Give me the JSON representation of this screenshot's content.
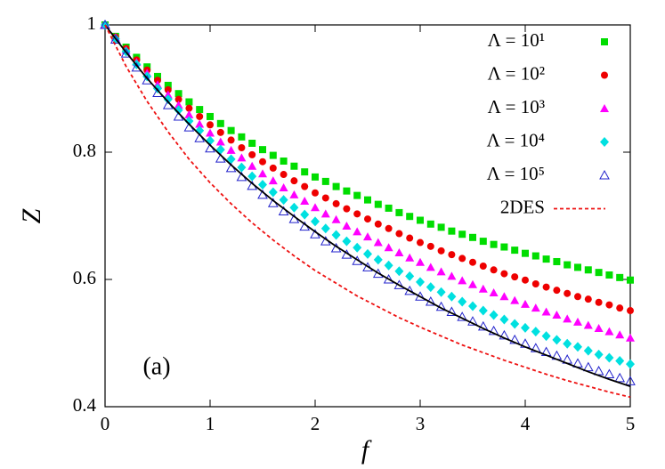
{
  "chart_data": {
    "type": "scatter",
    "xlabel": "f",
    "ylabel": "Z",
    "annotation": "(a)",
    "xlim": [
      0,
      5
    ],
    "ylim": [
      0.4,
      1
    ],
    "xticks": [
      0,
      1,
      2,
      3,
      4,
      5
    ],
    "yticks": [
      0.4,
      0.6,
      0.8,
      1
    ],
    "legend": "top-right",
    "series": [
      {
        "name": "Λ = 10¹",
        "color": "#00dd00",
        "marker": "square",
        "x": [
          0,
          0.1,
          0.2,
          0.3,
          0.4,
          0.5,
          0.6,
          0.7,
          0.8,
          0.9,
          1,
          1.1,
          1.2,
          1.3,
          1.4,
          1.5,
          1.6,
          1.7,
          1.8,
          1.9,
          2,
          2.1,
          2.2,
          2.3,
          2.4,
          2.5,
          2.6,
          2.7,
          2.8,
          2.9,
          3,
          3.1,
          3.2,
          3.3,
          3.4,
          3.5,
          3.6,
          3.7,
          3.8,
          3.9,
          4,
          4.1,
          4.2,
          4.3,
          4.4,
          4.5,
          4.6,
          4.7,
          4.8,
          4.9,
          5
        ],
        "values": [
          1,
          0.982,
          0.965,
          0.949,
          0.934,
          0.919,
          0.905,
          0.892,
          0.879,
          0.867,
          0.856,
          0.845,
          0.834,
          0.824,
          0.814,
          0.804,
          0.795,
          0.786,
          0.778,
          0.769,
          0.761,
          0.754,
          0.746,
          0.739,
          0.732,
          0.725,
          0.718,
          0.712,
          0.705,
          0.699,
          0.693,
          0.687,
          0.682,
          0.676,
          0.671,
          0.666,
          0.66,
          0.655,
          0.651,
          0.646,
          0.641,
          0.637,
          0.632,
          0.628,
          0.623,
          0.619,
          0.615,
          0.611,
          0.607,
          0.603,
          0.599
        ]
      },
      {
        "name": "Λ = 10²",
        "color": "#ee0000",
        "marker": "circle",
        "x": [
          0,
          0.1,
          0.2,
          0.3,
          0.4,
          0.5,
          0.6,
          0.7,
          0.8,
          0.9,
          1,
          1.1,
          1.2,
          1.3,
          1.4,
          1.5,
          1.6,
          1.7,
          1.8,
          1.9,
          2,
          2.1,
          2.2,
          2.3,
          2.4,
          2.5,
          2.6,
          2.7,
          2.8,
          2.9,
          3,
          3.1,
          3.2,
          3.3,
          3.4,
          3.5,
          3.6,
          3.7,
          3.8,
          3.9,
          4,
          4.1,
          4.2,
          4.3,
          4.4,
          4.5,
          4.6,
          4.7,
          4.8,
          4.9,
          5
        ],
        "values": [
          1,
          0.981,
          0.963,
          0.945,
          0.929,
          0.913,
          0.898,
          0.883,
          0.869,
          0.856,
          0.843,
          0.831,
          0.819,
          0.807,
          0.796,
          0.785,
          0.775,
          0.765,
          0.755,
          0.746,
          0.736,
          0.728,
          0.719,
          0.711,
          0.703,
          0.695,
          0.687,
          0.68,
          0.672,
          0.665,
          0.658,
          0.652,
          0.645,
          0.639,
          0.633,
          0.627,
          0.621,
          0.615,
          0.609,
          0.604,
          0.599,
          0.593,
          0.588,
          0.583,
          0.578,
          0.573,
          0.569,
          0.564,
          0.56,
          0.555,
          0.551
        ]
      },
      {
        "name": "Λ = 10³",
        "color": "#ff00ff",
        "marker": "triangle",
        "x": [
          0,
          0.1,
          0.2,
          0.3,
          0.4,
          0.5,
          0.6,
          0.7,
          0.8,
          0.9,
          1,
          1.1,
          1.2,
          1.3,
          1.4,
          1.5,
          1.6,
          1.7,
          1.8,
          1.9,
          2,
          2.1,
          2.2,
          2.3,
          2.4,
          2.5,
          2.6,
          2.7,
          2.8,
          2.9,
          3,
          3.1,
          3.2,
          3.3,
          3.4,
          3.5,
          3.6,
          3.7,
          3.8,
          3.9,
          4,
          4.1,
          4.2,
          4.3,
          4.4,
          4.5,
          4.6,
          4.7,
          4.8,
          4.9,
          5
        ],
        "values": [
          1,
          0.98,
          0.96,
          0.941,
          0.924,
          0.906,
          0.89,
          0.874,
          0.859,
          0.844,
          0.83,
          0.816,
          0.803,
          0.791,
          0.778,
          0.766,
          0.755,
          0.744,
          0.733,
          0.723,
          0.713,
          0.703,
          0.694,
          0.684,
          0.675,
          0.667,
          0.658,
          0.65,
          0.642,
          0.634,
          0.627,
          0.619,
          0.612,
          0.605,
          0.598,
          0.592,
          0.585,
          0.579,
          0.573,
          0.567,
          0.561,
          0.555,
          0.549,
          0.544,
          0.538,
          0.533,
          0.528,
          0.523,
          0.518,
          0.513,
          0.508
        ]
      },
      {
        "name": "Λ = 10⁴",
        "color": "#00e0e0",
        "marker": "diamond",
        "x": [
          0,
          0.1,
          0.2,
          0.3,
          0.4,
          0.5,
          0.6,
          0.7,
          0.8,
          0.9,
          1,
          1.1,
          1.2,
          1.3,
          1.4,
          1.5,
          1.6,
          1.7,
          1.8,
          1.9,
          2,
          2.1,
          2.2,
          2.3,
          2.4,
          2.5,
          2.6,
          2.7,
          2.8,
          2.9,
          3,
          3.1,
          3.2,
          3.3,
          3.4,
          3.5,
          3.6,
          3.7,
          3.8,
          3.9,
          4,
          4.1,
          4.2,
          4.3,
          4.4,
          4.5,
          4.6,
          4.7,
          4.8,
          4.9,
          5
        ],
        "values": [
          1,
          0.978,
          0.958,
          0.938,
          0.919,
          0.9,
          0.883,
          0.866,
          0.849,
          0.834,
          0.818,
          0.804,
          0.789,
          0.776,
          0.762,
          0.749,
          0.737,
          0.725,
          0.713,
          0.702,
          0.691,
          0.68,
          0.67,
          0.66,
          0.65,
          0.64,
          0.631,
          0.622,
          0.613,
          0.605,
          0.596,
          0.588,
          0.58,
          0.573,
          0.565,
          0.558,
          0.551,
          0.544,
          0.537,
          0.53,
          0.524,
          0.518,
          0.511,
          0.505,
          0.499,
          0.494,
          0.488,
          0.482,
          0.477,
          0.472,
          0.467
        ]
      },
      {
        "name": "Λ = 10⁵",
        "color": "#2222cc",
        "marker": "open-triangle",
        "x": [
          0,
          0.1,
          0.2,
          0.3,
          0.4,
          0.5,
          0.6,
          0.7,
          0.8,
          0.9,
          1,
          1.1,
          1.2,
          1.3,
          1.4,
          1.5,
          1.6,
          1.7,
          1.8,
          1.9,
          2,
          2.1,
          2.2,
          2.3,
          2.4,
          2.5,
          2.6,
          2.7,
          2.8,
          2.9,
          3,
          3.1,
          3.2,
          3.3,
          3.4,
          3.5,
          3.6,
          3.7,
          3.8,
          3.9,
          4,
          4.1,
          4.2,
          4.3,
          4.4,
          4.5,
          4.6,
          4.7,
          4.8,
          4.9,
          5
        ],
        "values": [
          1,
          0.977,
          0.955,
          0.933,
          0.913,
          0.893,
          0.874,
          0.856,
          0.839,
          0.822,
          0.806,
          0.79,
          0.775,
          0.761,
          0.747,
          0.733,
          0.72,
          0.707,
          0.695,
          0.683,
          0.671,
          0.66,
          0.649,
          0.639,
          0.629,
          0.619,
          0.609,
          0.6,
          0.591,
          0.582,
          0.573,
          0.565,
          0.557,
          0.549,
          0.541,
          0.534,
          0.526,
          0.519,
          0.512,
          0.505,
          0.499,
          0.492,
          0.486,
          0.48,
          0.474,
          0.468,
          0.462,
          0.456,
          0.451,
          0.445,
          0.44
        ]
      },
      {
        "color": "#000000",
        "marker": "line",
        "x": [
          0,
          0.2,
          0.4,
          0.6,
          0.8,
          1,
          1.2,
          1.4,
          1.6,
          1.8,
          2,
          2.2,
          2.4,
          2.6,
          2.8,
          3,
          3.2,
          3.4,
          3.6,
          3.8,
          4,
          4.2,
          4.4,
          4.6,
          4.8,
          5
        ],
        "values": [
          1,
          0.957,
          0.916,
          0.879,
          0.844,
          0.811,
          0.78,
          0.751,
          0.724,
          0.699,
          0.675,
          0.652,
          0.631,
          0.61,
          0.591,
          0.573,
          0.555,
          0.539,
          0.523,
          0.508,
          0.494,
          0.481,
          0.468,
          0.455,
          0.443,
          0.432
        ]
      },
      {
        "name": "2DES",
        "color": "#ee1111",
        "marker": "dashed-line",
        "x": [
          0,
          0.2,
          0.4,
          0.6,
          0.8,
          1,
          1.2,
          1.4,
          1.6,
          1.8,
          2,
          2.2,
          2.4,
          2.6,
          2.8,
          3,
          3.2,
          3.4,
          3.6,
          3.8,
          4,
          4.2,
          4.4,
          4.6,
          4.8,
          5
        ],
        "values": [
          1,
          0.935,
          0.88,
          0.832,
          0.789,
          0.752,
          0.719,
          0.689,
          0.662,
          0.637,
          0.614,
          0.594,
          0.574,
          0.557,
          0.54,
          0.525,
          0.511,
          0.497,
          0.485,
          0.473,
          0.462,
          0.451,
          0.441,
          0.432,
          0.423,
          0.415
        ]
      }
    ]
  }
}
